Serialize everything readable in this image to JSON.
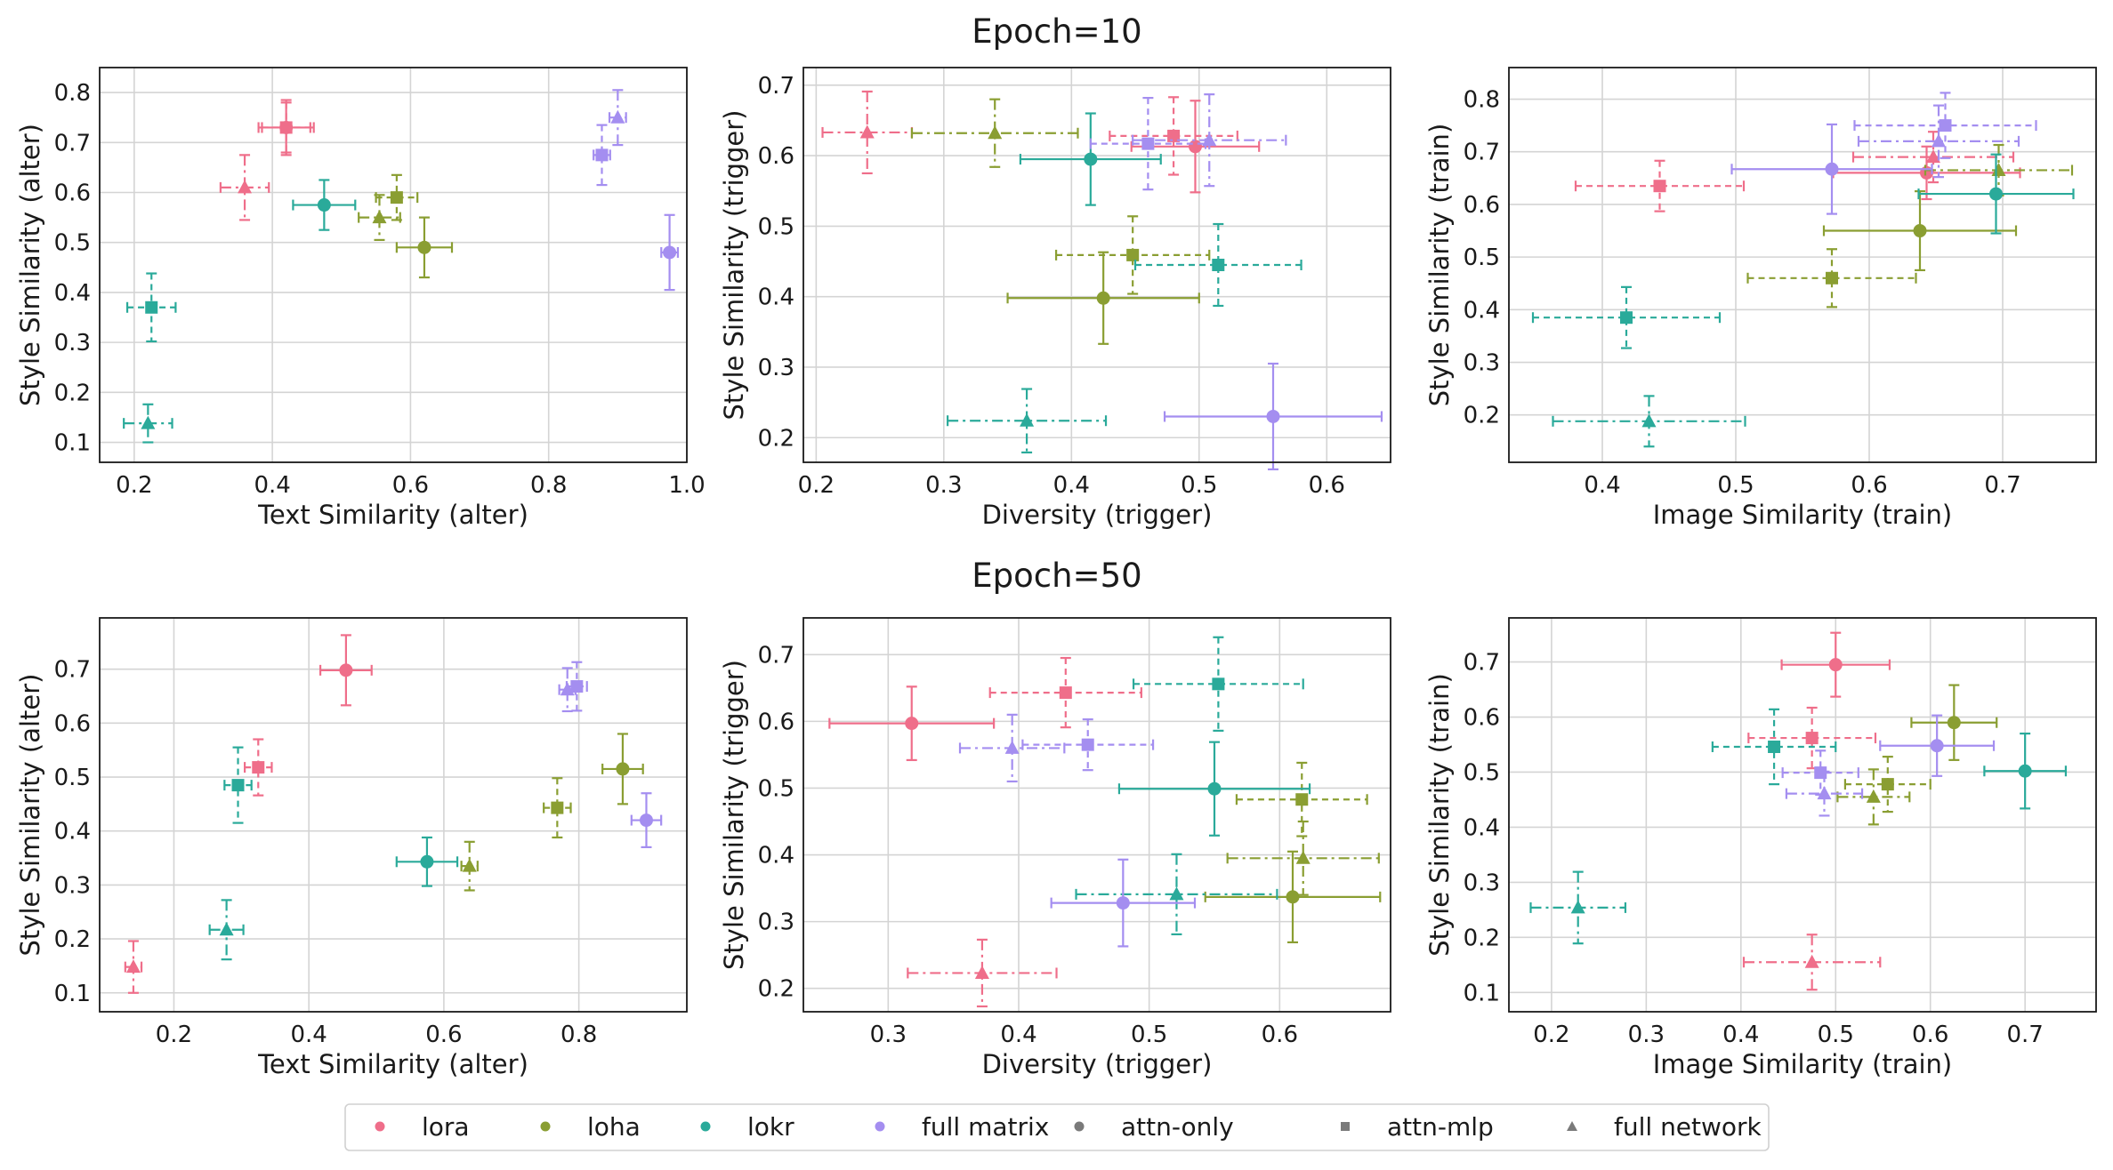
{
  "legend": {
    "items": [
      {
        "label": "lora",
        "kind": "color",
        "color": "#ef6e8a"
      },
      {
        "label": "loha",
        "kind": "color",
        "color": "#8a9e32"
      },
      {
        "label": "lokr",
        "kind": "color",
        "color": "#2aaa9a"
      },
      {
        "label": "full matrix",
        "kind": "color",
        "color": "#a48ef0"
      },
      {
        "label": "attn-only",
        "kind": "marker",
        "marker": "circle",
        "color": "#7a7a7a"
      },
      {
        "label": "attn-mlp",
        "kind": "marker",
        "marker": "square",
        "color": "#7a7a7a"
      },
      {
        "label": "full network",
        "kind": "marker",
        "marker": "triangle",
        "color": "#7a7a7a"
      }
    ]
  },
  "rows": [
    {
      "title": "Epoch=10"
    },
    {
      "title": "Epoch=50"
    }
  ],
  "chart_data": [
    {
      "type": "scatter",
      "title": "",
      "row": 0,
      "col": 0,
      "xlabel": "Text Similarity (alter)",
      "ylabel": "Style Similarity (alter)",
      "xlim": [
        0.15,
        1.0
      ],
      "ylim": [
        0.06,
        0.85
      ],
      "xticks": [
        "0.2",
        "0.4",
        "0.6",
        "0.8",
        "1.0"
      ],
      "yticks": [
        "0.1",
        "0.2",
        "0.3",
        "0.4",
        "0.5",
        "0.6",
        "0.7",
        "0.8"
      ],
      "grid": true,
      "series": [
        {
          "name": "lora",
          "marker": "circle",
          "x": 0.42,
          "y": 0.73,
          "xerr": 0.04,
          "yerr": 0.055
        },
        {
          "name": "lora",
          "marker": "square",
          "x": 0.42,
          "y": 0.73,
          "xerr": 0.035,
          "yerr": 0.05
        },
        {
          "name": "lora",
          "marker": "triangle",
          "x": 0.36,
          "y": 0.61,
          "xerr": 0.035,
          "yerr": 0.065
        },
        {
          "name": "loha",
          "marker": "circle",
          "x": 0.62,
          "y": 0.49,
          "xerr": 0.04,
          "yerr": 0.06
        },
        {
          "name": "loha",
          "marker": "square",
          "x": 0.58,
          "y": 0.59,
          "xerr": 0.03,
          "yerr": 0.045
        },
        {
          "name": "loha",
          "marker": "triangle",
          "x": 0.555,
          "y": 0.55,
          "xerr": 0.03,
          "yerr": 0.045
        },
        {
          "name": "lokr",
          "marker": "circle",
          "x": 0.475,
          "y": 0.575,
          "xerr": 0.045,
          "yerr": 0.05
        },
        {
          "name": "lokr",
          "marker": "square",
          "x": 0.225,
          "y": 0.37,
          "xerr": 0.035,
          "yerr": 0.068
        },
        {
          "name": "lokr",
          "marker": "triangle",
          "x": 0.22,
          "y": 0.138,
          "xerr": 0.035,
          "yerr": 0.038
        },
        {
          "name": "full matrix",
          "marker": "circle",
          "x": 0.975,
          "y": 0.48,
          "xerr": 0.012,
          "yerr": 0.075
        },
        {
          "name": "full matrix",
          "marker": "square",
          "x": 0.877,
          "y": 0.675,
          "xerr": 0.012,
          "yerr": 0.06
        },
        {
          "name": "full matrix",
          "marker": "triangle",
          "x": 0.9,
          "y": 0.75,
          "xerr": 0.012,
          "yerr": 0.055
        }
      ]
    },
    {
      "type": "scatter",
      "title": "",
      "row": 0,
      "col": 1,
      "xlabel": "Diversity (trigger)",
      "ylabel": "Style Similarity (trigger)",
      "xlim": [
        0.19,
        0.65
      ],
      "ylim": [
        0.165,
        0.725
      ],
      "xticks": [
        "0.2",
        "0.3",
        "0.4",
        "0.5",
        "0.6"
      ],
      "yticks": [
        "0.2",
        "0.3",
        "0.4",
        "0.5",
        "0.6",
        "0.7"
      ],
      "grid": true,
      "series": [
        {
          "name": "lora",
          "marker": "circle",
          "x": 0.497,
          "y": 0.613,
          "xerr": 0.05,
          "yerr": 0.065
        },
        {
          "name": "lora",
          "marker": "square",
          "x": 0.48,
          "y": 0.628,
          "xerr": 0.05,
          "yerr": 0.055
        },
        {
          "name": "lora",
          "marker": "triangle",
          "x": 0.24,
          "y": 0.633,
          "xerr": 0.035,
          "yerr": 0.058
        },
        {
          "name": "loha",
          "marker": "circle",
          "x": 0.425,
          "y": 0.398,
          "xerr": 0.075,
          "yerr": 0.065
        },
        {
          "name": "loha",
          "marker": "square",
          "x": 0.448,
          "y": 0.459,
          "xerr": 0.06,
          "yerr": 0.055
        },
        {
          "name": "loha",
          "marker": "triangle",
          "x": 0.34,
          "y": 0.632,
          "xerr": 0.065,
          "yerr": 0.048
        },
        {
          "name": "lokr",
          "marker": "circle",
          "x": 0.415,
          "y": 0.595,
          "xerr": 0.055,
          "yerr": 0.065
        },
        {
          "name": "lokr",
          "marker": "square",
          "x": 0.515,
          "y": 0.445,
          "xerr": 0.065,
          "yerr": 0.058
        },
        {
          "name": "lokr",
          "marker": "triangle",
          "x": 0.365,
          "y": 0.224,
          "xerr": 0.062,
          "yerr": 0.045
        },
        {
          "name": "full matrix",
          "marker": "circle",
          "x": 0.558,
          "y": 0.23,
          "xerr": 0.085,
          "yerr": 0.075
        },
        {
          "name": "full matrix",
          "marker": "square",
          "x": 0.46,
          "y": 0.617,
          "xerr": 0.045,
          "yerr": 0.065
        },
        {
          "name": "full matrix",
          "marker": "triangle",
          "x": 0.508,
          "y": 0.622,
          "xerr": 0.06,
          "yerr": 0.065
        }
      ]
    },
    {
      "type": "scatter",
      "title": "",
      "row": 0,
      "col": 2,
      "xlabel": "Image Similarity (train)",
      "ylabel": "Style Similarity (train)",
      "xlim": [
        0.33,
        0.77
      ],
      "ylim": [
        0.11,
        0.86
      ],
      "xticks": [
        "0.4",
        "0.5",
        "0.6",
        "0.7"
      ],
      "yticks": [
        "0.2",
        "0.3",
        "0.4",
        "0.5",
        "0.6",
        "0.7",
        "0.8"
      ],
      "grid": true,
      "series": [
        {
          "name": "lora",
          "marker": "circle",
          "x": 0.643,
          "y": 0.66,
          "xerr": 0.07,
          "yerr": 0.05
        },
        {
          "name": "lora",
          "marker": "square",
          "x": 0.443,
          "y": 0.635,
          "xerr": 0.063,
          "yerr": 0.048
        },
        {
          "name": "lora",
          "marker": "triangle",
          "x": 0.648,
          "y": 0.69,
          "xerr": 0.06,
          "yerr": 0.048
        },
        {
          "name": "loha",
          "marker": "circle",
          "x": 0.638,
          "y": 0.55,
          "xerr": 0.072,
          "yerr": 0.075
        },
        {
          "name": "loha",
          "marker": "square",
          "x": 0.572,
          "y": 0.46,
          "xerr": 0.063,
          "yerr": 0.055
        },
        {
          "name": "loha",
          "marker": "triangle",
          "x": 0.697,
          "y": 0.665,
          "xerr": 0.055,
          "yerr": 0.048
        },
        {
          "name": "lokr",
          "marker": "circle",
          "x": 0.695,
          "y": 0.62,
          "xerr": 0.058,
          "yerr": 0.075
        },
        {
          "name": "lokr",
          "marker": "square",
          "x": 0.418,
          "y": 0.385,
          "xerr": 0.07,
          "yerr": 0.058
        },
        {
          "name": "lokr",
          "marker": "triangle",
          "x": 0.435,
          "y": 0.188,
          "xerr": 0.072,
          "yerr": 0.048
        },
        {
          "name": "full matrix",
          "marker": "circle",
          "x": 0.572,
          "y": 0.667,
          "xerr": 0.075,
          "yerr": 0.085
        },
        {
          "name": "full matrix",
          "marker": "square",
          "x": 0.657,
          "y": 0.75,
          "xerr": 0.068,
          "yerr": 0.062
        },
        {
          "name": "full matrix",
          "marker": "triangle",
          "x": 0.652,
          "y": 0.72,
          "xerr": 0.06,
          "yerr": 0.068
        }
      ]
    },
    {
      "type": "scatter",
      "title": "",
      "row": 1,
      "col": 0,
      "xlabel": "Text Similarity (alter)",
      "ylabel": "Style Similarity (alter)",
      "xlim": [
        0.09,
        0.96
      ],
      "ylim": [
        0.065,
        0.795
      ],
      "xticks": [
        "0.2",
        "0.4",
        "0.6",
        "0.8"
      ],
      "yticks": [
        "0.1",
        "0.2",
        "0.3",
        "0.4",
        "0.5",
        "0.6",
        "0.7"
      ],
      "grid": true,
      "series": [
        {
          "name": "lora",
          "marker": "circle",
          "x": 0.455,
          "y": 0.698,
          "xerr": 0.038,
          "yerr": 0.065
        },
        {
          "name": "lora",
          "marker": "square",
          "x": 0.325,
          "y": 0.518,
          "xerr": 0.02,
          "yerr": 0.052
        },
        {
          "name": "lora",
          "marker": "triangle",
          "x": 0.14,
          "y": 0.148,
          "xerr": 0.012,
          "yerr": 0.048
        },
        {
          "name": "loha",
          "marker": "circle",
          "x": 0.865,
          "y": 0.515,
          "xerr": 0.03,
          "yerr": 0.065
        },
        {
          "name": "loha",
          "marker": "square",
          "x": 0.768,
          "y": 0.443,
          "xerr": 0.02,
          "yerr": 0.055
        },
        {
          "name": "loha",
          "marker": "triangle",
          "x": 0.638,
          "y": 0.335,
          "xerr": 0.012,
          "yerr": 0.045
        },
        {
          "name": "lokr",
          "marker": "circle",
          "x": 0.575,
          "y": 0.343,
          "xerr": 0.045,
          "yerr": 0.045
        },
        {
          "name": "lokr",
          "marker": "square",
          "x": 0.295,
          "y": 0.485,
          "xerr": 0.02,
          "yerr": 0.07
        },
        {
          "name": "lokr",
          "marker": "triangle",
          "x": 0.278,
          "y": 0.217,
          "xerr": 0.025,
          "yerr": 0.055
        },
        {
          "name": "full matrix",
          "marker": "circle",
          "x": 0.9,
          "y": 0.42,
          "xerr": 0.022,
          "yerr": 0.05
        },
        {
          "name": "full matrix",
          "marker": "square",
          "x": 0.797,
          "y": 0.668,
          "xerr": 0.015,
          "yerr": 0.045
        },
        {
          "name": "full matrix",
          "marker": "triangle",
          "x": 0.783,
          "y": 0.662,
          "xerr": 0.012,
          "yerr": 0.04
        }
      ]
    },
    {
      "type": "scatter",
      "title": "",
      "row": 1,
      "col": 1,
      "xlabel": "Diversity (trigger)",
      "ylabel": "Style Similarity (trigger)",
      "xlim": [
        0.235,
        0.685
      ],
      "ylim": [
        0.165,
        0.755
      ],
      "xticks": [
        "0.3",
        "0.4",
        "0.5",
        "0.6"
      ],
      "yticks": [
        "0.2",
        "0.3",
        "0.4",
        "0.5",
        "0.6",
        "0.7"
      ],
      "grid": true,
      "series": [
        {
          "name": "lora",
          "marker": "circle",
          "x": 0.318,
          "y": 0.597,
          "xerr": 0.063,
          "yerr": 0.055
        },
        {
          "name": "lora",
          "marker": "square",
          "x": 0.436,
          "y": 0.643,
          "xerr": 0.058,
          "yerr": 0.052
        },
        {
          "name": "lora",
          "marker": "triangle",
          "x": 0.372,
          "y": 0.223,
          "xerr": 0.057,
          "yerr": 0.05
        },
        {
          "name": "loha",
          "marker": "circle",
          "x": 0.61,
          "y": 0.337,
          "xerr": 0.067,
          "yerr": 0.068
        },
        {
          "name": "loha",
          "marker": "square",
          "x": 0.617,
          "y": 0.483,
          "xerr": 0.05,
          "yerr": 0.055
        },
        {
          "name": "loha",
          "marker": "triangle",
          "x": 0.618,
          "y": 0.395,
          "xerr": 0.058,
          "yerr": 0.055
        },
        {
          "name": "lokr",
          "marker": "circle",
          "x": 0.55,
          "y": 0.499,
          "xerr": 0.073,
          "yerr": 0.07
        },
        {
          "name": "lokr",
          "marker": "square",
          "x": 0.553,
          "y": 0.656,
          "xerr": 0.065,
          "yerr": 0.07
        },
        {
          "name": "lokr",
          "marker": "triangle",
          "x": 0.521,
          "y": 0.341,
          "xerr": 0.077,
          "yerr": 0.06
        },
        {
          "name": "full matrix",
          "marker": "circle",
          "x": 0.48,
          "y": 0.328,
          "xerr": 0.055,
          "yerr": 0.065
        },
        {
          "name": "full matrix",
          "marker": "square",
          "x": 0.453,
          "y": 0.565,
          "xerr": 0.05,
          "yerr": 0.038
        },
        {
          "name": "full matrix",
          "marker": "triangle",
          "x": 0.395,
          "y": 0.56,
          "xerr": 0.04,
          "yerr": 0.05
        }
      ]
    },
    {
      "type": "scatter",
      "title": "",
      "row": 1,
      "col": 2,
      "xlabel": "Image Similarity (train)",
      "ylabel": "Style Similarity (train)",
      "xlim": [
        0.155,
        0.775
      ],
      "ylim": [
        0.065,
        0.78
      ],
      "xticks": [
        "0.2",
        "0.3",
        "0.4",
        "0.5",
        "0.6",
        "0.7"
      ],
      "yticks": [
        "0.1",
        "0.2",
        "0.3",
        "0.4",
        "0.5",
        "0.6",
        "0.7"
      ],
      "grid": true,
      "series": [
        {
          "name": "lora",
          "marker": "circle",
          "x": 0.5,
          "y": 0.695,
          "xerr": 0.057,
          "yerr": 0.058
        },
        {
          "name": "lora",
          "marker": "square",
          "x": 0.475,
          "y": 0.562,
          "xerr": 0.067,
          "yerr": 0.055
        },
        {
          "name": "lora",
          "marker": "triangle",
          "x": 0.475,
          "y": 0.155,
          "xerr": 0.072,
          "yerr": 0.05
        },
        {
          "name": "loha",
          "marker": "circle",
          "x": 0.625,
          "y": 0.59,
          "xerr": 0.045,
          "yerr": 0.068
        },
        {
          "name": "loha",
          "marker": "square",
          "x": 0.555,
          "y": 0.478,
          "xerr": 0.045,
          "yerr": 0.05
        },
        {
          "name": "loha",
          "marker": "triangle",
          "x": 0.54,
          "y": 0.455,
          "xerr": 0.038,
          "yerr": 0.05
        },
        {
          "name": "lokr",
          "marker": "circle",
          "x": 0.7,
          "y": 0.502,
          "xerr": 0.043,
          "yerr": 0.068
        },
        {
          "name": "lokr",
          "marker": "square",
          "x": 0.435,
          "y": 0.546,
          "xerr": 0.065,
          "yerr": 0.068
        },
        {
          "name": "lokr",
          "marker": "triangle",
          "x": 0.228,
          "y": 0.254,
          "xerr": 0.05,
          "yerr": 0.065
        },
        {
          "name": "full matrix",
          "marker": "circle",
          "x": 0.607,
          "y": 0.548,
          "xerr": 0.06,
          "yerr": 0.055
        },
        {
          "name": "full matrix",
          "marker": "square",
          "x": 0.484,
          "y": 0.499,
          "xerr": 0.04,
          "yerr": 0.04
        },
        {
          "name": "full matrix",
          "marker": "triangle",
          "x": 0.488,
          "y": 0.461,
          "xerr": 0.04,
          "yerr": 0.04
        }
      ]
    }
  ]
}
